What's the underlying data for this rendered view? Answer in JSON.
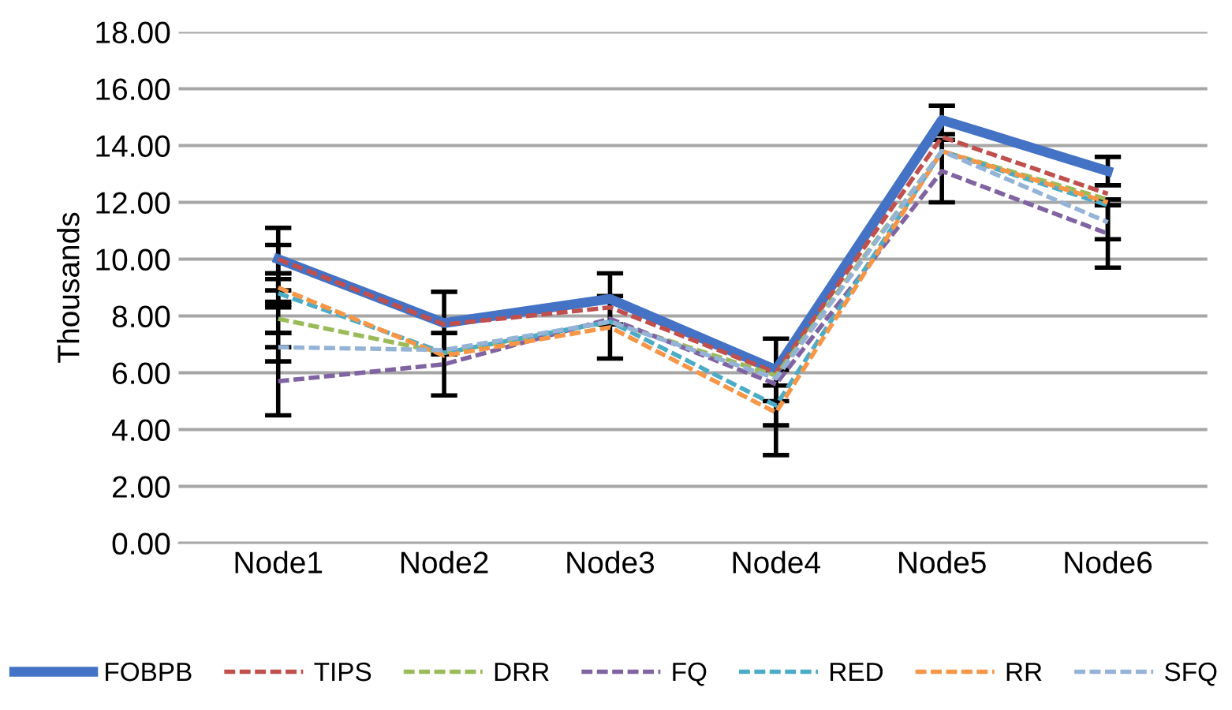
{
  "chart_data": {
    "type": "line",
    "ylabel": "Thousands",
    "categories": [
      "Node1",
      "Node2",
      "Node3",
      "Node4",
      "Node5",
      "Node6"
    ],
    "ylim": [
      0,
      18
    ],
    "yticks": [
      {
        "value": 0,
        "label": "0.00"
      },
      {
        "value": 2,
        "label": "2.00"
      },
      {
        "value": 4,
        "label": "4.00"
      },
      {
        "value": 6,
        "label": "6.00"
      },
      {
        "value": 8,
        "label": "8.00"
      },
      {
        "value": 10,
        "label": "10.00"
      },
      {
        "value": 12,
        "label": "12.00"
      },
      {
        "value": 14,
        "label": "14.00"
      },
      {
        "value": 16,
        "label": "16.00"
      },
      {
        "value": 18,
        "label": "18.00"
      }
    ],
    "grid": "y",
    "legend": "bottom",
    "marker": "none",
    "series": [
      {
        "name": "FOBPB",
        "color": "#4472c4",
        "line_style": "solid",
        "values": [
          10.0,
          7.75,
          8.6,
          6.1,
          14.9,
          13.1
        ],
        "errors": [
          1.1,
          1.1,
          0.9,
          1.1,
          0.5,
          0.5
        ]
      },
      {
        "name": "TIPS",
        "color": "#c0504d",
        "line_style": "dashed",
        "values": [
          10.0,
          7.7,
          8.3,
          6.0,
          14.3,
          12.3
        ],
        "errors": [
          0.5,
          null,
          null,
          null,
          null,
          null
        ]
      },
      {
        "name": "DRR",
        "color": "#9bbb59",
        "line_style": "dashed",
        "values": [
          7.9,
          6.7,
          7.8,
          5.9,
          13.8,
          12.1
        ],
        "errors": [
          0.5,
          null,
          null,
          null,
          null,
          null
        ]
      },
      {
        "name": "FQ",
        "color": "#8064a2",
        "line_style": "dashed",
        "values": [
          5.7,
          6.3,
          7.9,
          5.6,
          13.1,
          10.9
        ],
        "errors": [
          1.2,
          1.1,
          null,
          null,
          1.1,
          1.2
        ]
      },
      {
        "name": "RED",
        "color": "#4bacc6",
        "line_style": "dashed",
        "values": [
          8.8,
          6.7,
          7.8,
          4.85,
          13.8,
          11.9
        ],
        "errors": [
          0.5,
          null,
          null,
          0.7,
          null,
          null
        ]
      },
      {
        "name": "RR",
        "color": "#f79646",
        "line_style": "dashed",
        "values": [
          9.0,
          6.6,
          7.6,
          4.6,
          13.8,
          12.0
        ],
        "errors": [
          0.5,
          null,
          1.1,
          1.5,
          null,
          null
        ]
      },
      {
        "name": "SFQ",
        "color": "#95b3d7",
        "line_style": "dashed",
        "values": [
          6.9,
          6.8,
          7.8,
          5.8,
          13.8,
          11.3
        ],
        "errors": [
          0.5,
          null,
          null,
          null,
          null,
          0.6
        ]
      }
    ]
  }
}
